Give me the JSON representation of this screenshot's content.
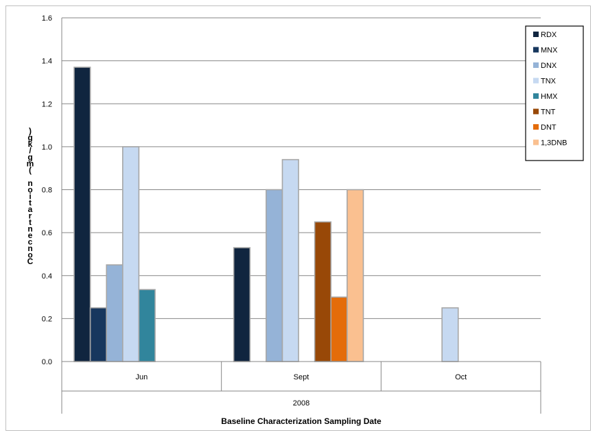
{
  "chart_data": {
    "type": "bar",
    "xlabel": "Baseline Characterization Sampling Date",
    "ylabel": "Concentration (mg/kg)",
    "group_label": "2008",
    "categories": [
      "Jun",
      "Sept",
      "Oct"
    ],
    "ylim": [
      0,
      1.6
    ],
    "yticks": [
      "0.0",
      "0.2",
      "0.4",
      "0.6",
      "0.8",
      "1.0",
      "1.2",
      "1.4",
      "1.6"
    ],
    "grid": true,
    "legend_position": "top-right",
    "series": [
      {
        "name": "RDX",
        "color": "#10253f",
        "values": [
          1.37,
          0.53,
          null
        ]
      },
      {
        "name": "MNX",
        "color": "#17375e",
        "values": [
          0.25,
          null,
          null
        ]
      },
      {
        "name": "DNX",
        "color": "#95b3d7",
        "values": [
          0.45,
          0.8,
          null
        ]
      },
      {
        "name": "TNX",
        "color": "#c6d9f1",
        "values": [
          1.0,
          0.94,
          0.25
        ]
      },
      {
        "name": "HMX",
        "color": "#31859c",
        "values": [
          0.335,
          null,
          null
        ]
      },
      {
        "name": "TNT",
        "color": "#984807",
        "values": [
          null,
          0.65,
          null
        ]
      },
      {
        "name": "DNT",
        "color": "#e46c0a",
        "values": [
          null,
          0.3,
          null
        ]
      },
      {
        "name": "1,3DNB",
        "color": "#fac090",
        "values": [
          null,
          0.8,
          null
        ]
      }
    ]
  }
}
